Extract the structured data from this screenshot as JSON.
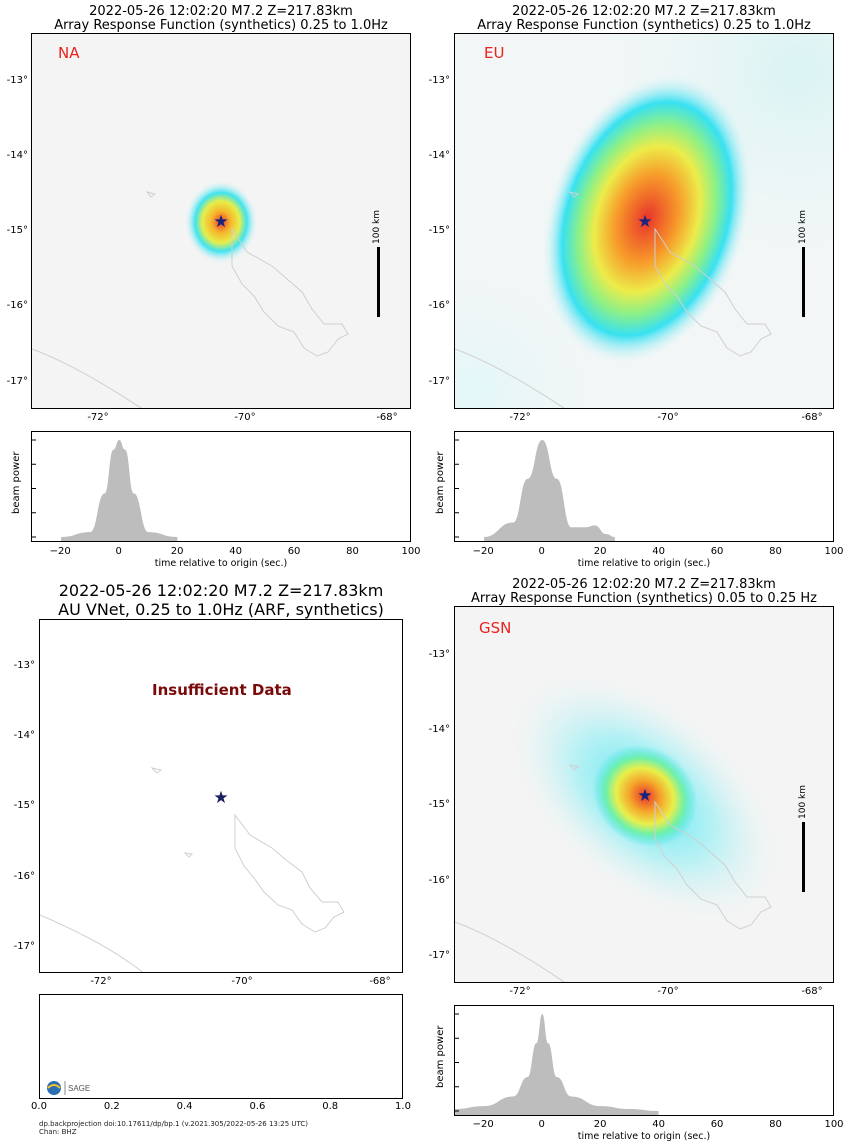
{
  "panels": [
    {
      "title_line1": "2022-05-26 12:02:20 M7.2 Z=217.83km",
      "title_line2": "Array Response Function (synthetics) 0.25 to 1.0Hz",
      "network": "NA",
      "scale_label": "100 km",
      "beam_ylabel": "beam power",
      "beam_xlabel": "time relative to origin (sec.)"
    },
    {
      "title_line1": "2022-05-26 12:02:20 M7.2 Z=217.83km",
      "title_line2": "Array Response Function (synthetics) 0.25 to 1.0Hz",
      "network": "EU",
      "scale_label": "100 km",
      "beam_ylabel": "beam power",
      "beam_xlabel": "time relative to origin (sec.)"
    },
    {
      "title_line1": "2022-05-26 12:02:20 M7.2 Z=217.83km",
      "title_line2": "AU VNet, 0.25 to 1.0Hz (ARF, synthetics)",
      "message": "Insufficient Data",
      "footer_line1": "dp.backprojection doi:10.17611/dp/bp.1 (v.2021.305/2022-05-26 13:25 UTC)",
      "footer_line2": "Chan: BHZ",
      "logo_text": "SAGE"
    },
    {
      "title_line1": "2022-05-26 12:02:20 M7.2 Z=217.83km",
      "title_line2": "Array Response Function (synthetics) 0.05 to 0.25 Hz",
      "network": "GSN",
      "scale_label": "100 km",
      "beam_ylabel": "beam power",
      "beam_xlabel": "time relative to origin (sec.)"
    }
  ],
  "map_axes": {
    "lat_ticks": [
      "-13°",
      "-14°",
      "-15°",
      "-16°",
      "-17°"
    ],
    "lon_ticks": [
      "-72°",
      "-70°",
      "-68°"
    ]
  },
  "beam_axes": {
    "x_ticks": [
      "−20",
      "0",
      "20",
      "40",
      "60",
      "80",
      "100"
    ],
    "empty_ticks": [
      "0.0",
      "0.2",
      "0.4",
      "0.6",
      "0.8",
      "1.0"
    ]
  },
  "chart_data": [
    {
      "type": "heatmap",
      "network": "NA",
      "epicenter": {
        "lon": -70.3,
        "lat": -14.87
      },
      "band": "0.25 to 1.0Hz",
      "beam": {
        "type": "area",
        "xlim": [
          -30,
          100
        ],
        "peak_time": 0,
        "x": [
          -20,
          -10,
          -5,
          -2,
          0,
          2,
          5,
          10,
          20
        ],
        "y": [
          0,
          0.05,
          0.45,
          0.9,
          1.0,
          0.9,
          0.45,
          0.05,
          0
        ]
      }
    },
    {
      "type": "heatmap",
      "network": "EU",
      "epicenter": {
        "lon": -70.3,
        "lat": -14.87
      },
      "band": "0.25 to 1.0Hz",
      "beam": {
        "type": "area",
        "xlim": [
          -30,
          100
        ],
        "peak_time": 0,
        "x": [
          -20,
          -10,
          -5,
          0,
          5,
          10,
          15,
          18,
          22,
          25
        ],
        "y": [
          0,
          0.15,
          0.6,
          1.0,
          0.6,
          0.1,
          0.1,
          0.12,
          0.03,
          0
        ]
      }
    },
    {
      "type": "heatmap",
      "network": "AU",
      "epicenter": {
        "lon": -70.3,
        "lat": -14.87
      },
      "band": "0.25 to 1.0Hz",
      "beam": {
        "type": "empty",
        "xlim": [
          0,
          1
        ]
      }
    },
    {
      "type": "heatmap",
      "network": "GSN",
      "epicenter": {
        "lon": -70.3,
        "lat": -14.87
      },
      "band": "0.05 to 0.25 Hz",
      "beam": {
        "type": "area",
        "xlim": [
          -30,
          100
        ],
        "peak_time": 0,
        "x": [
          -30,
          -20,
          -10,
          -5,
          -2,
          0,
          2,
          5,
          10,
          20,
          30,
          40
        ],
        "y": [
          0.02,
          0.05,
          0.15,
          0.35,
          0.7,
          1.0,
          0.7,
          0.35,
          0.15,
          0.05,
          0.02,
          0
        ]
      }
    }
  ]
}
